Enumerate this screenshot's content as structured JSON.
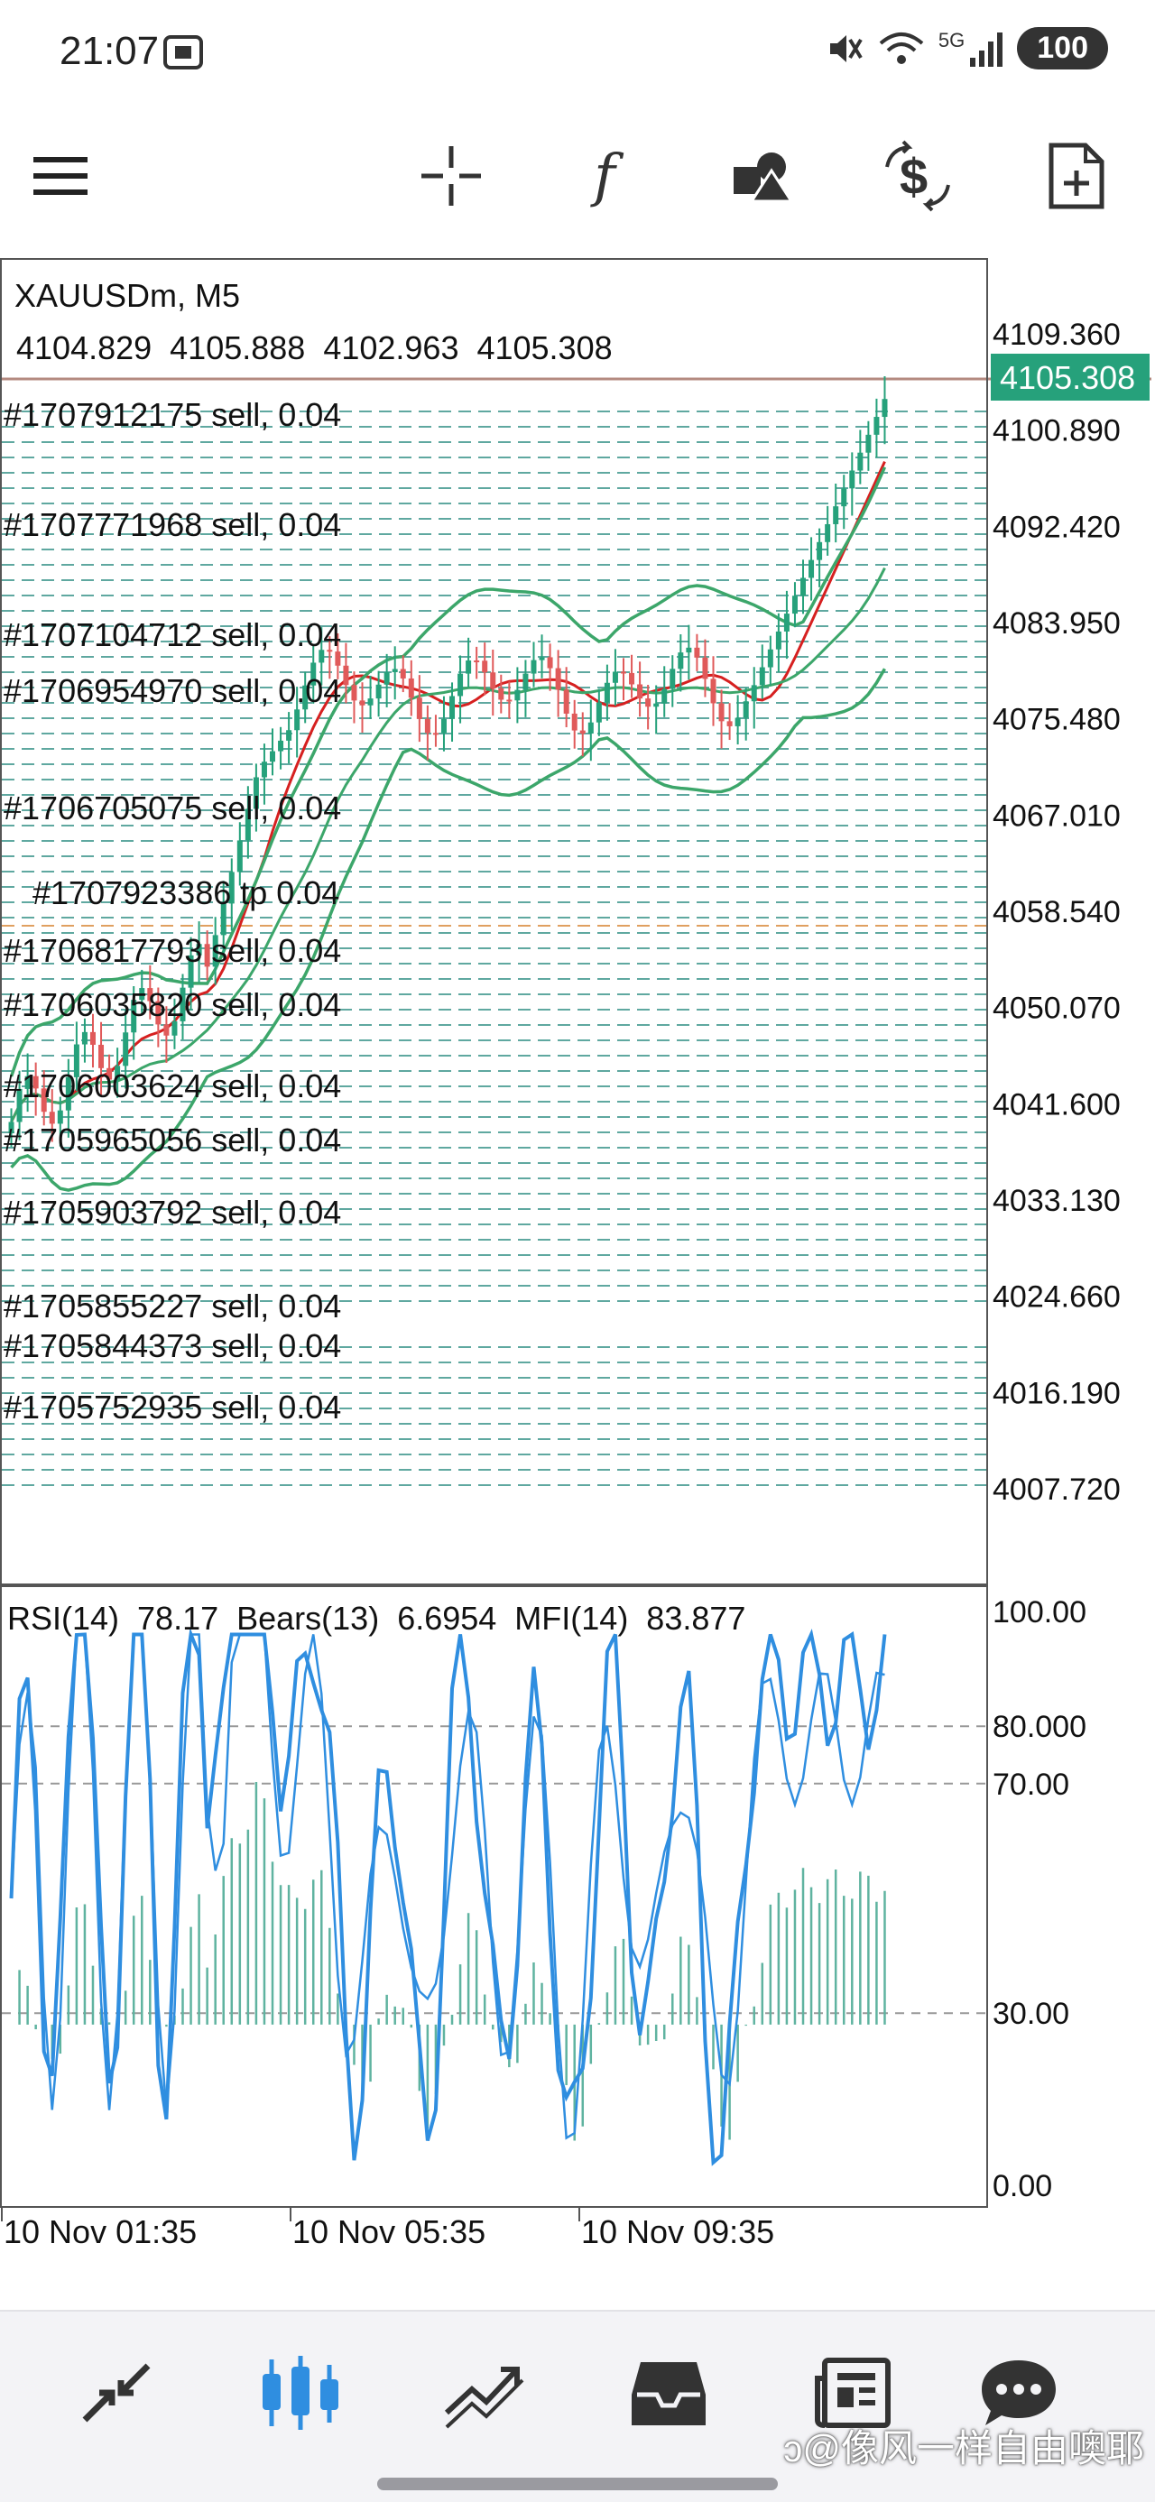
{
  "status_bar": {
    "time": "21:07",
    "battery": "100",
    "network": "5G",
    "icons": [
      "screenshot-icon",
      "mute-icon",
      "wifi-icon",
      "signal-icon"
    ]
  },
  "toolbar": {
    "buttons": [
      "menu-icon",
      "crosshair-icon",
      "indicators-icon",
      "objects-icon",
      "trade-icon",
      "new-order-icon"
    ],
    "indicators_glyph": "f"
  },
  "chart": {
    "symbol_timeframe": "XAUUSDm, M5",
    "ohlc": "4104.829  4105.888  4102.963  4105.308",
    "price_axis": [
      "4109.360",
      "4100.890",
      "4092.420",
      "4083.950",
      "4075.480",
      "4067.010",
      "4058.540",
      "4050.070",
      "4041.600",
      "4033.130",
      "4024.660",
      "4016.190",
      "4007.720"
    ],
    "current_price": "4105.308",
    "orders": [
      "#1707912175  sell, 0.04",
      "#1707771968  sell, 0.04",
      "#1707104712  sell, 0.04",
      "#1706954970  sell, 0.04",
      "#1706705075  sell, 0.04",
      "#1707923386  tp 0.04",
      "#1706817793  sell, 0.04",
      "#1706035820  sell, 0.04",
      "#1706003624  sell, 0.04",
      "#1705965056  sell, 0.04",
      "#1705903792  sell, 0.04",
      "#1705855227  sell, 0.04",
      "#1705844373  sell, 0.04",
      "#1705752935  sell, 0.04"
    ]
  },
  "indicator": {
    "label": "RSI(14)  78.17  Bears(13)  6.6954  MFI(14)  83.877",
    "levels": [
      "100.00",
      "80.000",
      "70.00",
      "30.00",
      "0.00"
    ]
  },
  "time_axis": [
    "10  Nov  01:35",
    "10  Nov  05:35",
    "10  Nov  09:35"
  ],
  "bottom_nav": {
    "items": [
      "quotes-icon",
      "chart-icon",
      "trade-icon",
      "history-icon",
      "news-icon",
      "chat-icon"
    ],
    "active": "chart-icon"
  },
  "watermark": "ↄ@像风一样自由噢耶",
  "colors": {
    "accent_blue": "#2f8ee0",
    "bullish": "#26a17b",
    "bearish": "#e05a5a",
    "ma_red": "#d62020",
    "bands_green": "#3ca66a",
    "price_tag": "#26a17b"
  }
}
